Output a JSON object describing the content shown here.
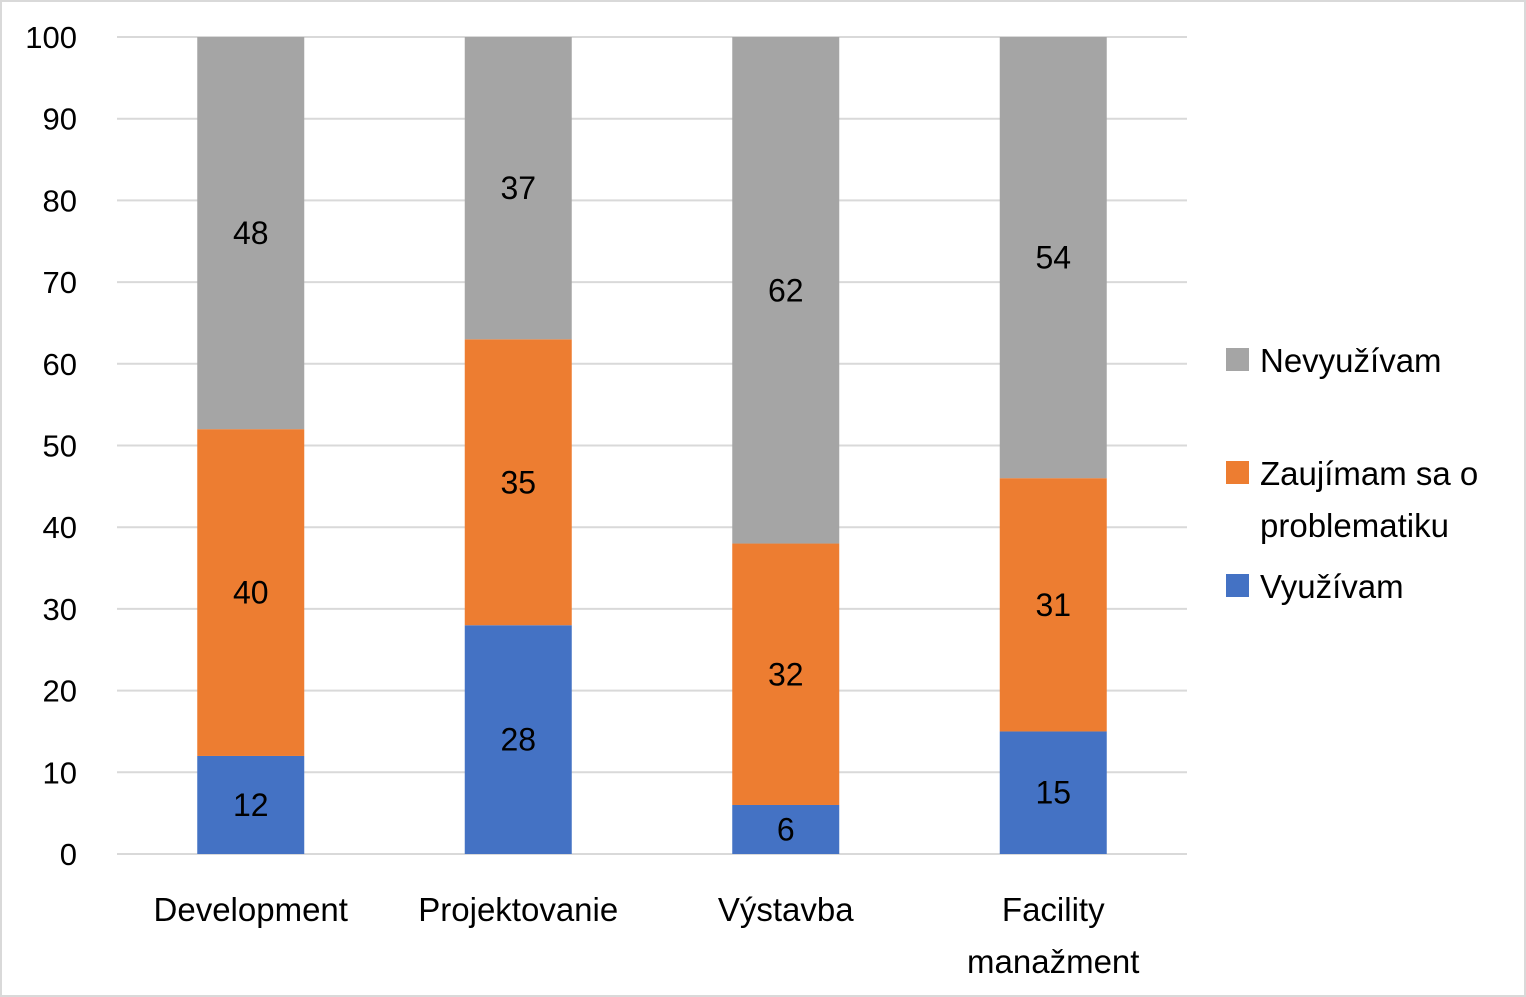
{
  "chart_data": {
    "type": "bar",
    "stacked": true,
    "title": "",
    "xlabel": "",
    "ylabel": "",
    "ylim": [
      0,
      100
    ],
    "yticks": [
      0,
      10,
      20,
      30,
      40,
      50,
      60,
      70,
      80,
      90,
      100
    ],
    "grid": true,
    "legend_position": "right",
    "categories": [
      [
        "Development"
      ],
      [
        "Projektovanie"
      ],
      [
        "Výstavba"
      ],
      [
        "Facility",
        "manažment"
      ]
    ],
    "category_names": [
      "Development",
      "Projektovanie",
      "Výstavba",
      "Facility manažment"
    ],
    "series": [
      {
        "name": "Využívam",
        "color": "#4472c4",
        "values": [
          12,
          28,
          6,
          15
        ]
      },
      {
        "name": "Zaujímam sa o problematiku",
        "legend_lines": [
          "Zaujímam sa o",
          "problematiku"
        ],
        "color": "#ed7d31",
        "values": [
          40,
          35,
          32,
          31
        ]
      },
      {
        "name": "Nevyužívam",
        "color": "#a5a5a5",
        "values": [
          48,
          37,
          62,
          54
        ]
      }
    ],
    "legend_order": [
      "Nevyužívam",
      "Zaujímam sa o problematiku",
      "Využívam"
    ],
    "data_labels": true
  }
}
